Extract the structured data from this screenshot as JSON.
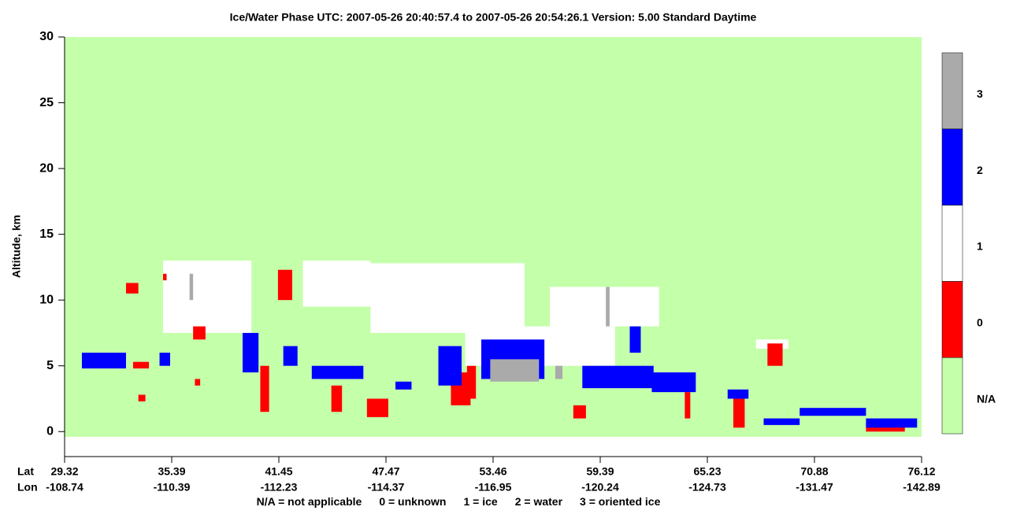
{
  "chart_data": {
    "type": "curtain",
    "title": "Ice/Water Phase    UTC:  2007-05-26   20:40:57.4  to  2007-05-26   20:54:26.1    Version: 5.00  Standard Daytime",
    "ylabel": "Altitude, km",
    "lat_label": "Lat",
    "lon_label": "Lon",
    "ylim": [
      -1.9,
      30
    ],
    "yticks": [
      0,
      5,
      10,
      15,
      20,
      25,
      30
    ],
    "xlim": [
      29.32,
      76.12
    ],
    "xticks": [
      29.32,
      35.39,
      41.45,
      47.47,
      53.46,
      59.39,
      65.23,
      70.88,
      76.12
    ],
    "lon_labels": [
      "-108.74",
      "-110.39",
      "-112.23",
      "-114.37",
      "-116.95",
      "-120.24",
      "-124.73",
      "-131.47",
      "-142.89"
    ],
    "classes": [
      {
        "label": "N/A",
        "color": "#c4ffaa"
      },
      {
        "label": "0",
        "color": "#ff0000"
      },
      {
        "label": "1",
        "color": "#ffffff"
      },
      {
        "label": "2",
        "color": "#0000ff"
      },
      {
        "label": "3",
        "color": "#aaaaaa"
      }
    ],
    "legend_text": [
      "N/A = not applicable",
      "0 = unknown",
      "1 = ice",
      "2 = water",
      "3 = oriented ice"
    ],
    "features": [
      {
        "class": 0,
        "lat": [
          29.32,
          76.12
        ],
        "alt": [
          -0.4,
          30
        ]
      },
      {
        "class": 2,
        "lat": [
          34.9,
          39.9
        ],
        "alt": [
          7.5,
          13
        ]
      },
      {
        "class": 2,
        "lat": [
          42.8,
          46.6
        ],
        "alt": [
          9.5,
          13
        ]
      },
      {
        "class": 2,
        "lat": [
          46.6,
          55.2
        ],
        "alt": [
          7.5,
          12.8
        ]
      },
      {
        "class": 2,
        "lat": [
          51.9,
          60.2
        ],
        "alt": [
          5,
          8
        ]
      },
      {
        "class": 2,
        "lat": [
          56.6,
          62.6
        ],
        "alt": [
          8,
          11
        ]
      },
      {
        "class": 2,
        "lat": [
          67.8,
          69.5
        ],
        "alt": [
          6.3,
          7
        ]
      },
      {
        "class": 1,
        "lat": [
          32.8,
          33.5
        ],
        "alt": [
          10.5,
          11.3
        ]
      },
      {
        "class": 1,
        "lat": [
          41.4,
          42.2
        ],
        "alt": [
          10,
          12.3
        ]
      },
      {
        "class": 1,
        "lat": [
          34.9,
          35.1
        ],
        "alt": [
          11.5,
          12
        ]
      },
      {
        "class": 1,
        "lat": [
          44.4,
          45.0
        ],
        "alt": [
          1.5,
          3.5
        ]
      },
      {
        "class": 1,
        "lat": [
          46.4,
          47.6
        ],
        "alt": [
          1.1,
          2.5
        ]
      },
      {
        "class": 1,
        "lat": [
          40.4,
          40.9
        ],
        "alt": [
          1.5,
          5
        ]
      },
      {
        "class": 1,
        "lat": [
          51.1,
          52.2
        ],
        "alt": [
          2,
          4.5
        ]
      },
      {
        "class": 1,
        "lat": [
          52.0,
          52.5
        ],
        "alt": [
          2.5,
          5
        ]
      },
      {
        "class": 1,
        "lat": [
          57.9,
          58.6
        ],
        "alt": [
          1,
          2
        ]
      },
      {
        "class": 1,
        "lat": [
          64.0,
          64.3
        ],
        "alt": [
          1,
          3
        ]
      },
      {
        "class": 1,
        "lat": [
          66.6,
          67.2
        ],
        "alt": [
          0.3,
          2.5
        ]
      },
      {
        "class": 1,
        "lat": [
          68.4,
          69.2
        ],
        "alt": [
          5,
          6.7
        ]
      },
      {
        "class": 1,
        "lat": [
          73.4,
          75.3
        ],
        "alt": [
          0,
          0.7
        ]
      },
      {
        "class": 1,
        "lat": [
          33.2,
          34.1
        ],
        "alt": [
          4.8,
          5.3
        ]
      },
      {
        "class": 1,
        "lat": [
          33.5,
          33.9
        ],
        "alt": [
          2.3,
          2.8
        ]
      },
      {
        "class": 1,
        "lat": [
          36.7,
          37.0
        ],
        "alt": [
          3.5,
          4
        ]
      },
      {
        "class": 1,
        "lat": [
          36.6,
          37.3
        ],
        "alt": [
          7,
          8
        ]
      },
      {
        "class": 3,
        "lat": [
          30.3,
          32.8
        ],
        "alt": [
          4.8,
          6
        ]
      },
      {
        "class": 3,
        "lat": [
          34.7,
          35.3
        ],
        "alt": [
          5,
          6
        ]
      },
      {
        "class": 3,
        "lat": [
          39.4,
          40.3
        ],
        "alt": [
          4.5,
          7.5
        ]
      },
      {
        "class": 3,
        "lat": [
          41.7,
          42.5
        ],
        "alt": [
          5,
          6.5
        ]
      },
      {
        "class": 3,
        "lat": [
          43.3,
          46.2
        ],
        "alt": [
          4,
          5
        ]
      },
      {
        "class": 3,
        "lat": [
          48.0,
          48.9
        ],
        "alt": [
          3.2,
          3.8
        ]
      },
      {
        "class": 3,
        "lat": [
          50.4,
          51.7
        ],
        "alt": [
          3.5,
          6.5
        ]
      },
      {
        "class": 3,
        "lat": [
          52.8,
          56.3
        ],
        "alt": [
          4,
          7
        ]
      },
      {
        "class": 3,
        "lat": [
          58.4,
          62.3
        ],
        "alt": [
          3.3,
          5
        ]
      },
      {
        "class": 3,
        "lat": [
          61.0,
          61.6
        ],
        "alt": [
          6,
          8
        ]
      },
      {
        "class": 3,
        "lat": [
          62.2,
          64.6
        ],
        "alt": [
          3,
          4.5
        ]
      },
      {
        "class": 3,
        "lat": [
          66.3,
          67.4
        ],
        "alt": [
          2.5,
          3.2
        ]
      },
      {
        "class": 3,
        "lat": [
          68.2,
          70.1
        ],
        "alt": [
          0.5,
          1
        ]
      },
      {
        "class": 3,
        "lat": [
          70.1,
          73.4
        ],
        "alt": [
          1.2,
          1.8
        ]
      },
      {
        "class": 3,
        "lat": [
          73.4,
          75.9
        ],
        "alt": [
          0.3,
          1
        ]
      },
      {
        "class": 4,
        "lat": [
          53.3,
          56.0
        ],
        "alt": [
          3.8,
          5.5
        ]
      },
      {
        "class": 4,
        "lat": [
          59.7,
          59.9
        ],
        "alt": [
          8,
          11
        ]
      },
      {
        "class": 4,
        "lat": [
          56.9,
          57.3
        ],
        "alt": [
          4,
          5
        ]
      },
      {
        "class": 4,
        "lat": [
          36.4,
          36.6
        ],
        "alt": [
          10,
          12
        ]
      }
    ]
  }
}
